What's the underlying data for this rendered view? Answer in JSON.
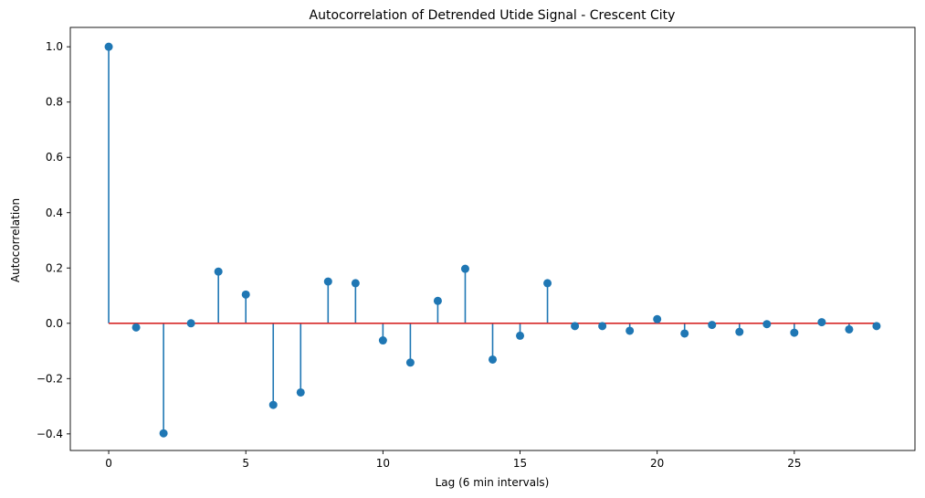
{
  "chart_data": {
    "type": "stem",
    "title": "Autocorrelation of Detrended Utide Signal - Crescent City",
    "xlabel": "Lag (6 min intervals)",
    "ylabel": "Autocorrelation",
    "xlim": [
      -1.4,
      29.4
    ],
    "ylim": [
      -0.46,
      1.07
    ],
    "xticks": [
      0,
      5,
      10,
      15,
      20,
      25
    ],
    "yticks": [
      -0.4,
      -0.2,
      0.0,
      0.2,
      0.4,
      0.6,
      0.8,
      1.0
    ],
    "xtick_labels": [
      "0",
      "5",
      "10",
      "15",
      "20",
      "25"
    ],
    "ytick_labels": [
      "−0.4",
      "−0.2",
      "0.0",
      "0.2",
      "0.4",
      "0.6",
      "0.8",
      "1.0"
    ],
    "grid": false,
    "baseline": 0,
    "colors": {
      "stem": "#1f77b4",
      "marker": "#1f77b4",
      "baseline": "#d62728"
    },
    "series": [
      {
        "x": [
          0,
          1,
          2,
          3,
          4,
          5,
          6,
          7,
          8,
          9,
          10,
          11,
          12,
          13,
          14,
          15,
          16,
          17,
          18,
          19,
          20,
          21,
          22,
          23,
          24,
          25,
          26,
          27,
          28
        ],
        "values": [
          1.0,
          -0.015,
          -0.398,
          0.0,
          0.187,
          0.104,
          -0.295,
          -0.25,
          0.151,
          0.145,
          -0.062,
          -0.142,
          0.081,
          0.197,
          -0.131,
          -0.045,
          0.145,
          -0.01,
          -0.01,
          -0.027,
          0.015,
          -0.037,
          -0.006,
          -0.031,
          -0.003,
          -0.034,
          0.004,
          -0.022,
          -0.01
        ]
      }
    ]
  }
}
